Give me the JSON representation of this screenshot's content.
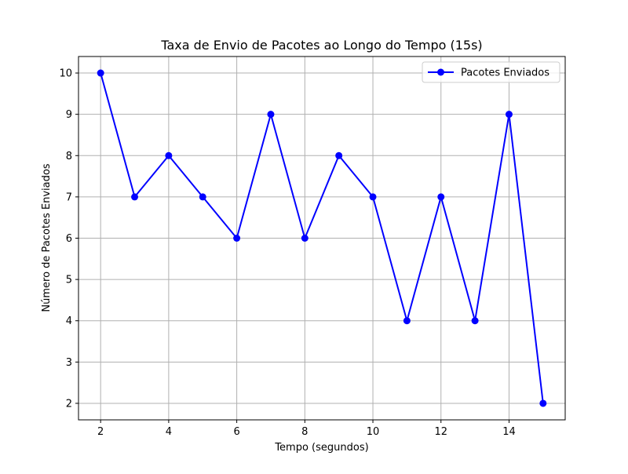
{
  "chart_data": {
    "type": "line",
    "title": "Taxa de Envio de Pacotes ao Longo do Tempo (15s)",
    "xlabel": "Tempo (segundos)",
    "ylabel": "Número de Pacotes Enviados",
    "x": [
      2,
      3,
      4,
      5,
      6,
      7,
      8,
      9,
      10,
      11,
      12,
      13,
      14,
      15
    ],
    "series": [
      {
        "name": "Pacotes Enviados",
        "values": [
          10,
          7,
          8,
          7,
          6,
          9,
          6,
          8,
          7,
          4,
          7,
          4,
          9,
          2
        ],
        "color": "#0000ff",
        "marker": "circle"
      }
    ],
    "xlim": [
      1.35,
      15.65
    ],
    "ylim": [
      1.6,
      10.4
    ],
    "xticks": [
      2,
      4,
      6,
      8,
      10,
      12,
      14
    ],
    "yticks": [
      2,
      3,
      4,
      5,
      6,
      7,
      8,
      9,
      10
    ],
    "grid": true,
    "legend_position": "top-right",
    "colors": {
      "grid": "#b0b0b0",
      "axis": "#000000"
    }
  }
}
